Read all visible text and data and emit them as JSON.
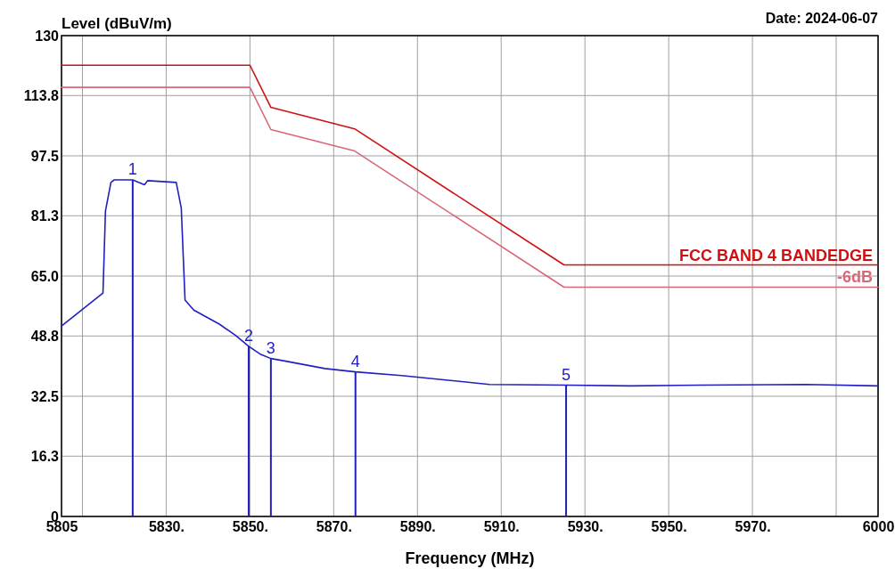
{
  "chart_data": {
    "type": "line",
    "xlabel": "Frequency (MHz)",
    "ylabel": "Level (dBuV/m)",
    "annotations": [
      "Date: 2024-06-07",
      {
        "text": "1",
        "x": 5822,
        "y": 91
      },
      {
        "text": "2",
        "x": 5849.7,
        "y": 46
      },
      {
        "text": "3",
        "x": 5855,
        "y": 42.7
      },
      {
        "text": "4",
        "x": 5875.2,
        "y": 39.1
      },
      {
        "text": "5",
        "x": 5925.5,
        "y": 35.5
      }
    ],
    "xlim": [
      5805,
      6000
    ],
    "xticks": [
      {
        "value": 5805,
        "label": "5805"
      },
      {
        "value": 5810,
        "label": null
      },
      {
        "value": 5830,
        "label": "5830."
      },
      {
        "value": 5850,
        "label": "5850."
      },
      {
        "value": 5870,
        "label": "5870."
      },
      {
        "value": 5890,
        "label": "5890."
      },
      {
        "value": 5910,
        "label": "5910."
      },
      {
        "value": 5930,
        "label": "5930."
      },
      {
        "value": 5950,
        "label": "5950."
      },
      {
        "value": 5970,
        "label": "5970."
      },
      {
        "value": 5990,
        "label": null
      },
      {
        "value": 6000,
        "label": "6000"
      }
    ],
    "ylim": [
      0,
      130
    ],
    "yticks": [
      0,
      16.3,
      32.5,
      48.8,
      {
        "value": 65,
        "label": "65.0"
      },
      81.3,
      97.5,
      113.8,
      130
    ],
    "grid": true,
    "legend": false,
    "series": [
      {
        "name": "FCC BAND 4 BANDEDGE",
        "color": "#d01010",
        "x": [
          5805,
          5850,
          5855,
          5875,
          5925,
          6000
        ],
        "values": [
          122,
          122,
          110.6,
          104.8,
          68,
          68
        ]
      },
      {
        "name": "-6dB",
        "color": "#d86878",
        "x": [
          5805,
          5850,
          5855,
          5875,
          5925,
          6000
        ],
        "values": [
          116,
          116,
          104.6,
          98.8,
          62,
          62
        ]
      },
      {
        "color": "#2020c0",
        "x": [
          5805,
          5814.9,
          5815.5,
          5816.8,
          5817.6,
          5822,
          5824.8,
          5825.6,
          5832.4,
          5833.6,
          5834.5,
          5836.6,
          5842.7,
          5846.5,
          5849.7,
          5852.6,
          5855,
          5858,
          5867.9,
          5875.2,
          5886.2,
          5907.2,
          5925.5,
          5940.8,
          5957.6,
          5982.8,
          6000
        ],
        "values": [
          51.5,
          60.4,
          82.6,
          90.3,
          91,
          91,
          89.7,
          90.8,
          90.3,
          83.4,
          58.5,
          55.8,
          52,
          49,
          46,
          43.8,
          42.7,
          42.1,
          40,
          39.1,
          38.1,
          35.7,
          35.5,
          35.3,
          35.5,
          35.7,
          35.3
        ]
      },
      {
        "type": "bar",
        "color": "#2020c0",
        "x": [
          5822,
          5849.7,
          5855,
          5875.2,
          5925.5
        ],
        "values": [
          91,
          46,
          42.7,
          39.1,
          35.5
        ]
      }
    ]
  }
}
